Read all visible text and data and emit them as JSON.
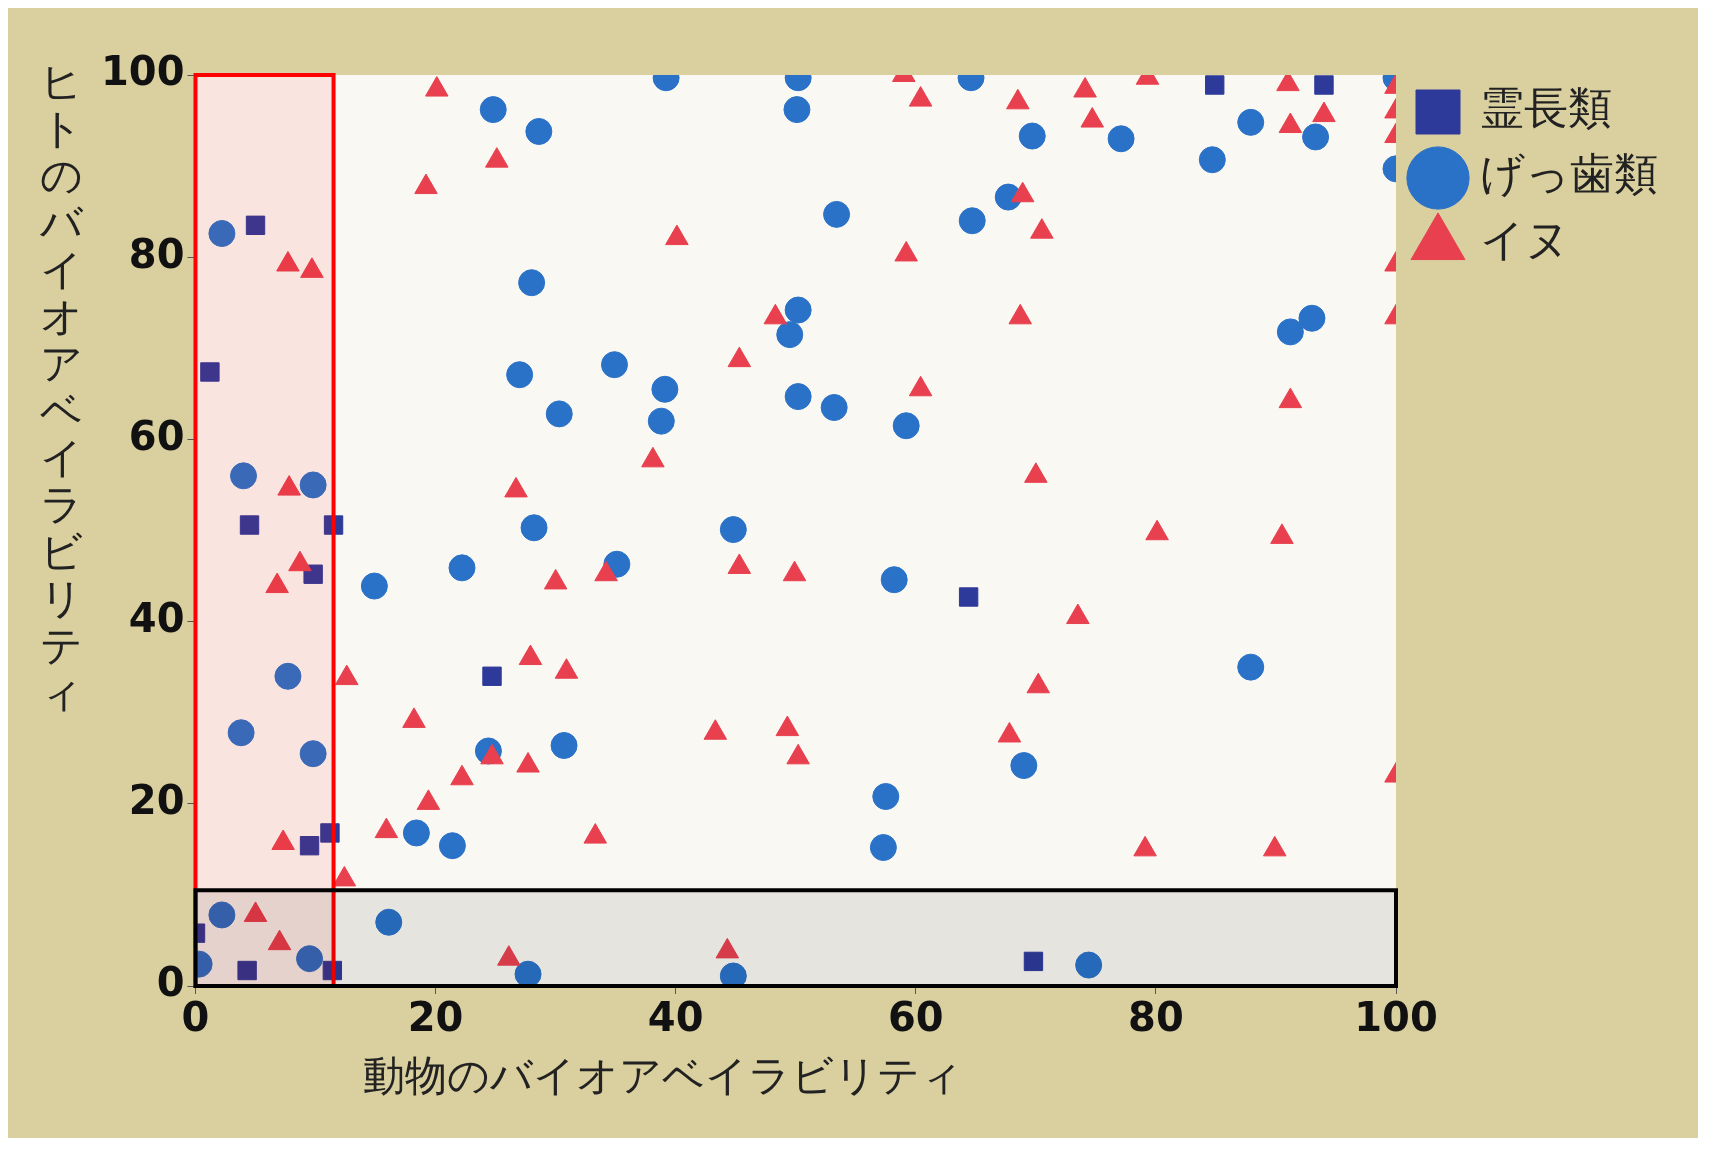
{
  "chart_data": {
    "type": "scatter",
    "xlabel": "動物のバイオアベイラビリティ",
    "ylabel": "ヒトのバイオアベイラビリティ",
    "xlim": [
      0,
      100
    ],
    "ylim": [
      0,
      100
    ],
    "xticks": [
      0,
      20,
      40,
      60,
      80,
      100
    ],
    "yticks": [
      0,
      20,
      40,
      60,
      80,
      100
    ],
    "grid": false,
    "legend": "top right",
    "bands": [
      {
        "axis": "x",
        "from": 0,
        "to": 11.5,
        "color": "#ff0000"
      },
      {
        "axis": "y",
        "from": 0,
        "to": 10.5,
        "color": "#000000"
      }
    ],
    "series": [
      {
        "name": "霊長類",
        "color": "#2e3a9a",
        "marker": "square",
        "x": [
          1.2,
          5,
          4.5,
          9.8,
          11.5,
          24.7,
          9.5,
          11.2,
          0,
          4.3,
          11.4,
          64.4,
          69.8,
          84.9,
          94
        ],
        "values": [
          67.4,
          83.5,
          50.6,
          45.2,
          50.6,
          34,
          15.4,
          16.8,
          5.8,
          1.7,
          1.7,
          42.7,
          2.7,
          98.9,
          98.9
        ]
      },
      {
        "name": "げっ歯類",
        "color": "#2a72c8",
        "marker": "circle",
        "x": [
          2.2,
          4,
          3.8,
          9.8,
          7.7,
          9.8,
          2.2,
          0.3,
          9.5,
          14.9,
          16.1,
          18.4,
          21.4,
          22.2,
          24.8,
          28.6,
          28,
          27,
          28.2,
          30.3,
          30.7,
          24.4,
          27.7,
          34.9,
          35.1,
          39.2,
          39.1,
          38.8,
          44.8,
          44.8,
          50.2,
          50.1,
          50.2,
          49.5,
          50.2,
          53.2,
          53.4,
          59.2,
          58.2,
          57.5,
          57.3,
          64.6,
          64.7,
          67.7,
          69.7,
          69,
          74.4,
          77.1,
          84.7,
          87.9,
          87.9,
          91.2,
          93,
          93.3,
          100,
          100
        ],
        "values": [
          82.6,
          56,
          27.8,
          55,
          34,
          25.5,
          7.8,
          2.4,
          3,
          43.9,
          7,
          16.8,
          15.4,
          45.9,
          96.2,
          93.8,
          77.2,
          67.1,
          50.3,
          62.8,
          26.4,
          25.8,
          1.3,
          68.2,
          46.3,
          99.7,
          65.5,
          62,
          50.1,
          1.1,
          99.7,
          96.2,
          74.2,
          71.5,
          64.7,
          63.5,
          84.7,
          61.5,
          44.6,
          20.8,
          15.2,
          99.7,
          84,
          86.6,
          93.3,
          24.2,
          2.3,
          93,
          90.7,
          94.8,
          35,
          71.8,
          73.3,
          93.2,
          99.7,
          89.7
        ]
      },
      {
        "name": "イヌ",
        "color": "#e8404f",
        "marker": "triangle",
        "x": [
          20.1,
          25.1,
          19.2,
          7.7,
          9.7,
          7.8,
          6.8,
          8.7,
          12.6,
          18.2,
          19.4,
          22.2,
          24.7,
          27.7,
          26.7,
          27.9,
          30,
          30.9,
          34.2,
          33.3,
          38.1,
          40.1,
          45.3,
          45.3,
          43.3,
          44.3,
          48.3,
          49.3,
          50.2,
          49.9,
          15.9,
          7.3,
          12.4,
          5,
          7,
          26.1,
          59,
          60.4,
          59.2,
          60.4,
          68.5,
          68.9,
          70.5,
          68.7,
          70,
          70.2,
          67.8,
          73.5,
          74.1,
          74.7,
          79.3,
          80.1,
          79.1,
          91,
          91.2,
          94,
          91.2,
          90.5,
          89.9,
          100,
          100,
          100,
          100,
          100,
          100
        ],
        "values": [
          98.4,
          90.6,
          87.7,
          79.2,
          78.5,
          54.6,
          43.9,
          46.3,
          33.8,
          29.1,
          20.1,
          22.8,
          25.1,
          24.2,
          54.4,
          36,
          44.3,
          34.5,
          45.2,
          16.4,
          57.7,
          82.1,
          68.7,
          46,
          27.8,
          3.8,
          73.4,
          28.2,
          25.1,
          45.2,
          17,
          15.7,
          11.7,
          7.8,
          4.7,
          3,
          100,
          97.3,
          80.3,
          65.5,
          97,
          86.8,
          82.8,
          73.4,
          56,
          32.9,
          27.5,
          40.5,
          98.3,
          95,
          99.7,
          49.7,
          15,
          99,
          94.4,
          95.6,
          64.2,
          49.3,
          15,
          98.7,
          96,
          93.3,
          79.2,
          73.4,
          23.1
        ]
      }
    ]
  }
}
